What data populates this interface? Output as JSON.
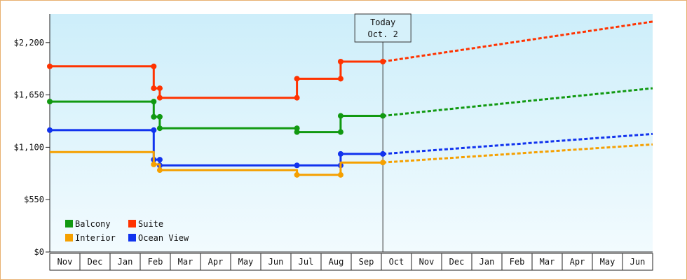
{
  "chart_data": {
    "type": "line",
    "line_style": "step",
    "y_axis": {
      "min": 0,
      "max": 2500,
      "ticks": [
        0,
        550,
        1100,
        1650,
        2200
      ],
      "tick_labels": [
        "$0",
        "$550",
        "$1,100",
        "$1,650",
        "$2,200"
      ]
    },
    "x_axis": {
      "months": [
        "Nov",
        "Dec",
        "Jan",
        "Feb",
        "Mar",
        "Apr",
        "May",
        "Jun",
        "Jul",
        "Aug",
        "Sep",
        "Oct",
        "Nov",
        "Dec",
        "Jan",
        "Feb",
        "Mar",
        "Apr",
        "May",
        "Jun"
      ],
      "range_months": [
        0,
        20
      ]
    },
    "today_marker": {
      "line1": "Today",
      "line2": "Oct. 2",
      "x_month": 11.05
    },
    "grid": false,
    "background_gradient": [
      "#cdeefa",
      "#f2fbfe"
    ],
    "legend": {
      "placement": "bottom-left",
      "items": [
        {
          "name": "Balcony",
          "color": "#119911"
        },
        {
          "name": "Suite",
          "color": "#ff3300"
        },
        {
          "name": "Interior",
          "color": "#f5a000"
        },
        {
          "name": "Ocean View",
          "color": "#1133ee"
        }
      ]
    },
    "series": [
      {
        "name": "Suite",
        "color": "#ff3300",
        "points": [
          [
            0,
            1950
          ],
          [
            3.45,
            1950
          ],
          [
            3.45,
            1720
          ],
          [
            3.65,
            1720
          ],
          [
            3.65,
            1620
          ],
          [
            8.2,
            1620
          ],
          [
            8.2,
            1820
          ],
          [
            9.65,
            1820
          ],
          [
            9.65,
            2000
          ],
          [
            11.05,
            2000
          ]
        ],
        "markers": [
          [
            0,
            1950
          ],
          [
            3.45,
            1950
          ],
          [
            3.45,
            1720
          ],
          [
            3.65,
            1720
          ],
          [
            3.65,
            1620
          ],
          [
            8.2,
            1620
          ],
          [
            8.2,
            1820
          ],
          [
            9.65,
            1820
          ],
          [
            9.65,
            2000
          ],
          [
            11.05,
            2000
          ]
        ],
        "forecast": [
          [
            11.05,
            2000
          ],
          [
            20,
            2420
          ]
        ]
      },
      {
        "name": "Balcony",
        "color": "#119911",
        "points": [
          [
            0,
            1580
          ],
          [
            3.45,
            1580
          ],
          [
            3.45,
            1420
          ],
          [
            3.65,
            1420
          ],
          [
            3.65,
            1300
          ],
          [
            8.2,
            1300
          ],
          [
            8.2,
            1260
          ],
          [
            9.65,
            1260
          ],
          [
            9.65,
            1430
          ],
          [
            11.05,
            1430
          ]
        ],
        "markers": [
          [
            0,
            1580
          ],
          [
            3.45,
            1580
          ],
          [
            3.45,
            1420
          ],
          [
            3.65,
            1420
          ],
          [
            3.65,
            1300
          ],
          [
            8.2,
            1300
          ],
          [
            8.2,
            1260
          ],
          [
            9.65,
            1260
          ],
          [
            9.65,
            1430
          ],
          [
            11.05,
            1430
          ]
        ],
        "forecast": [
          [
            11.05,
            1430
          ],
          [
            20,
            1720
          ]
        ]
      },
      {
        "name": "Ocean View",
        "color": "#1133ee",
        "points": [
          [
            0,
            1280
          ],
          [
            3.45,
            1280
          ],
          [
            3.45,
            970
          ],
          [
            3.65,
            970
          ],
          [
            3.65,
            910
          ],
          [
            8.2,
            910
          ],
          [
            9.65,
            910
          ],
          [
            9.65,
            1030
          ],
          [
            11.05,
            1030
          ]
        ],
        "markers": [
          [
            0,
            1280
          ],
          [
            3.45,
            1280
          ],
          [
            3.45,
            970
          ],
          [
            3.65,
            970
          ],
          [
            3.65,
            910
          ],
          [
            8.2,
            910
          ],
          [
            9.65,
            910
          ],
          [
            9.65,
            1030
          ],
          [
            11.05,
            1030
          ]
        ],
        "forecast": [
          [
            11.05,
            1030
          ],
          [
            20,
            1240
          ]
        ]
      },
      {
        "name": "Interior",
        "color": "#f5a000",
        "points": [
          [
            0,
            1050
          ],
          [
            3.45,
            1050
          ],
          [
            3.45,
            920
          ],
          [
            3.65,
            920
          ],
          [
            3.65,
            860
          ],
          [
            8.2,
            860
          ],
          [
            8.2,
            810
          ],
          [
            9.65,
            810
          ],
          [
            9.65,
            940
          ],
          [
            11.05,
            940
          ]
        ],
        "markers": [
          [
            3.45,
            920
          ],
          [
            3.65,
            860
          ],
          [
            8.2,
            810
          ],
          [
            9.65,
            810
          ],
          [
            11.05,
            940
          ]
        ],
        "forecast": [
          [
            11.05,
            940
          ],
          [
            20,
            1130
          ]
        ]
      }
    ]
  }
}
